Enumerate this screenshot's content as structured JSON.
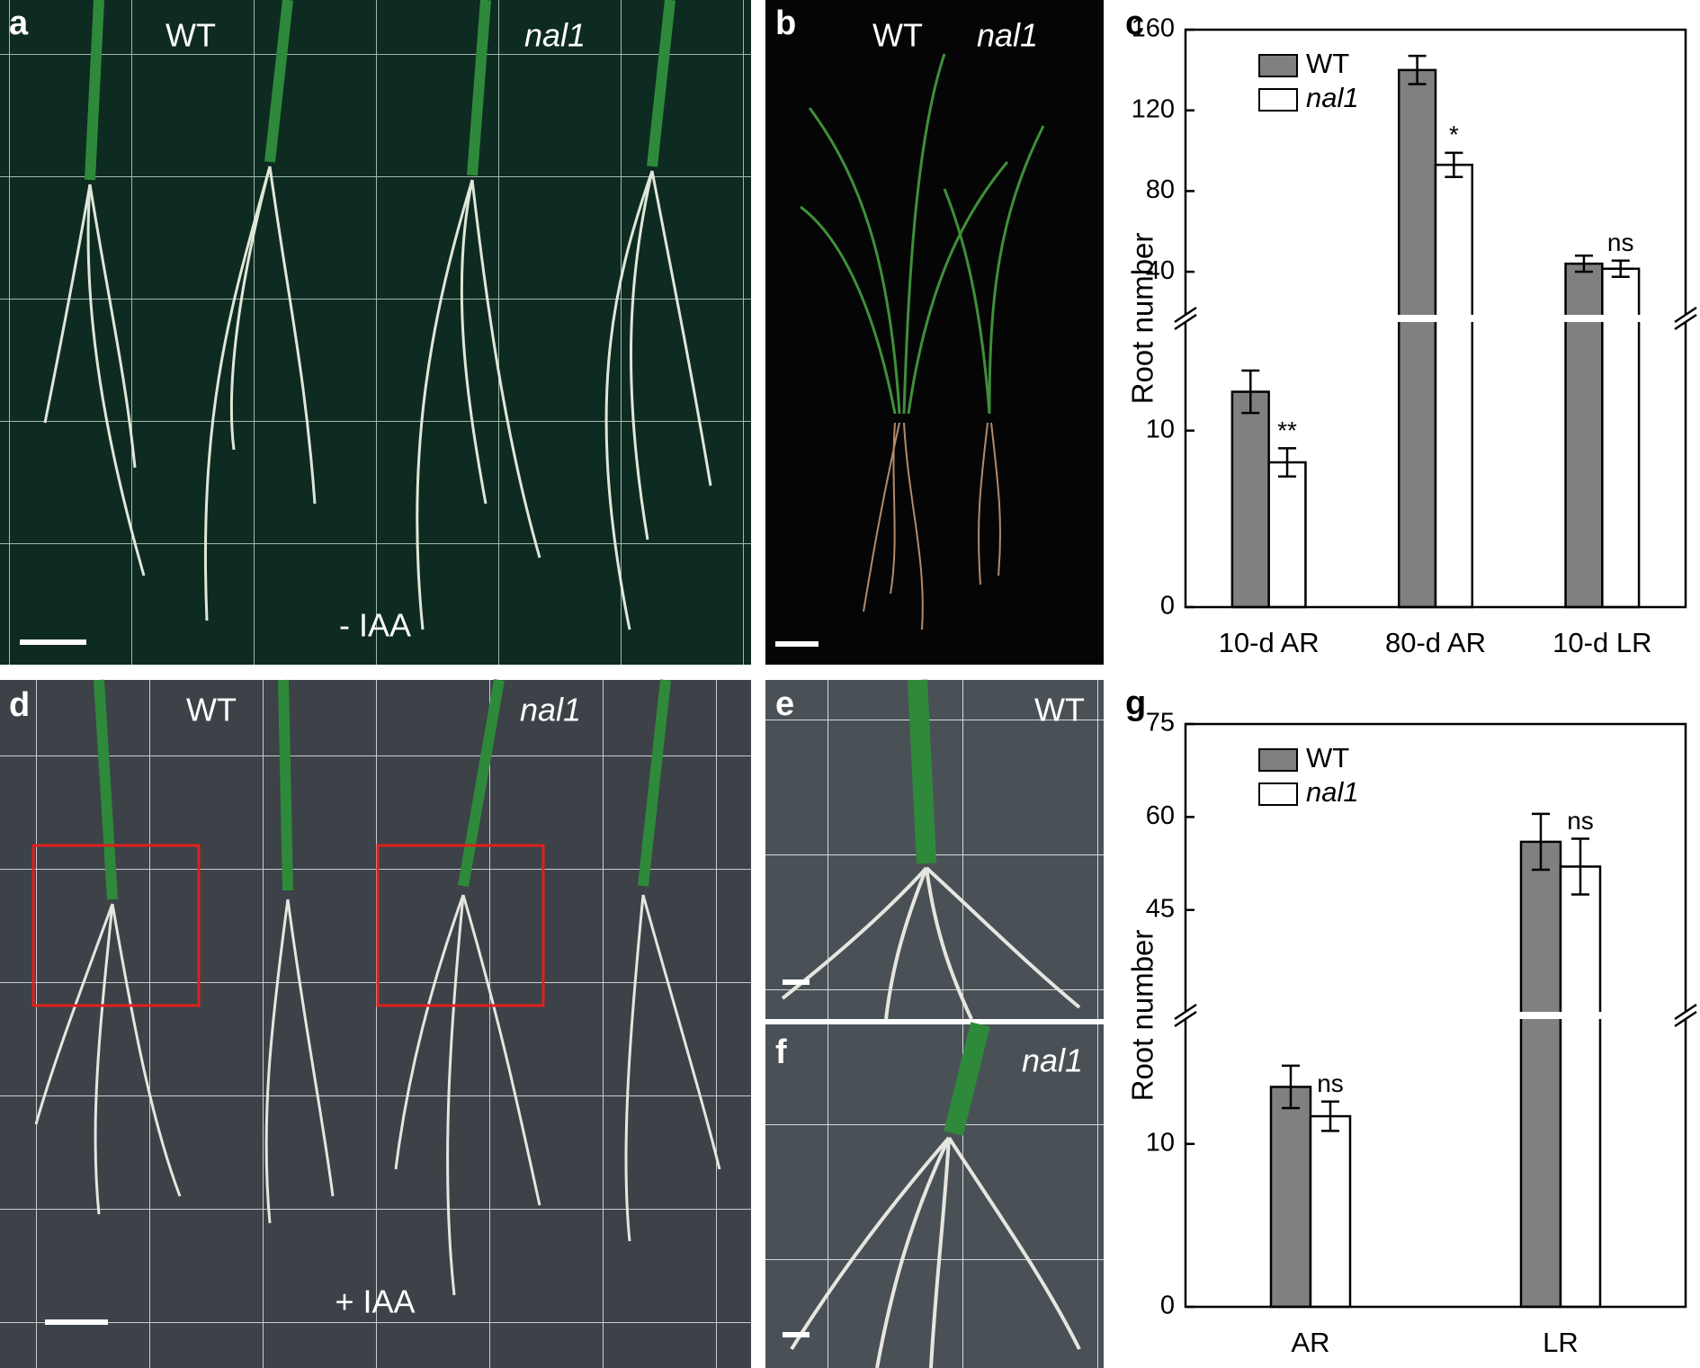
{
  "panels": {
    "a": {
      "letter": "a",
      "labels": [
        "WT",
        "nal1"
      ],
      "treatment": "- IAA"
    },
    "b": {
      "letter": "b",
      "labels": [
        "WT",
        "nal1"
      ]
    },
    "d": {
      "letter": "d",
      "labels": [
        "WT",
        "nal1"
      ],
      "treatment": "+ IAA"
    },
    "e": {
      "letter": "e",
      "label": "WT"
    },
    "f": {
      "letter": "f",
      "label": "nal1"
    }
  },
  "chart_data": [
    {
      "type": "bar",
      "letter": "c",
      "y_label": "Root number",
      "categories": [
        "10-d AR",
        "80-d AR",
        "10-d LR"
      ],
      "series": [
        {
          "name": "WT",
          "color": "#808080",
          "values": [
            12.2,
            140,
            44
          ],
          "errors": [
            1.2,
            7,
            4
          ]
        },
        {
          "name": "nal1",
          "color": "#ffffff",
          "values": [
            8.2,
            93,
            41.5
          ],
          "errors": [
            0.8,
            6,
            4
          ]
        }
      ],
      "significance": [
        "**",
        "*",
        "ns"
      ],
      "ylim": [
        0,
        160
      ],
      "ybreak": [
        16,
        20
      ],
      "yticks": [
        0,
        10,
        40,
        80,
        120,
        160
      ]
    },
    {
      "type": "bar",
      "letter": "g",
      "y_label": "Root number",
      "categories": [
        "AR",
        "LR"
      ],
      "series": [
        {
          "name": "WT",
          "color": "#808080",
          "values": [
            13.5,
            56
          ],
          "errors": [
            1.3,
            4.5
          ]
        },
        {
          "name": "nal1",
          "color": "#ffffff",
          "values": [
            11.7,
            52
          ],
          "errors": [
            0.9,
            4.5
          ]
        }
      ],
      "significance": [
        "ns",
        "ns"
      ],
      "ylim": [
        0,
        75
      ],
      "ybreak": [
        17.5,
        29
      ],
      "yticks": [
        0,
        10,
        45,
        60,
        75
      ]
    }
  ]
}
